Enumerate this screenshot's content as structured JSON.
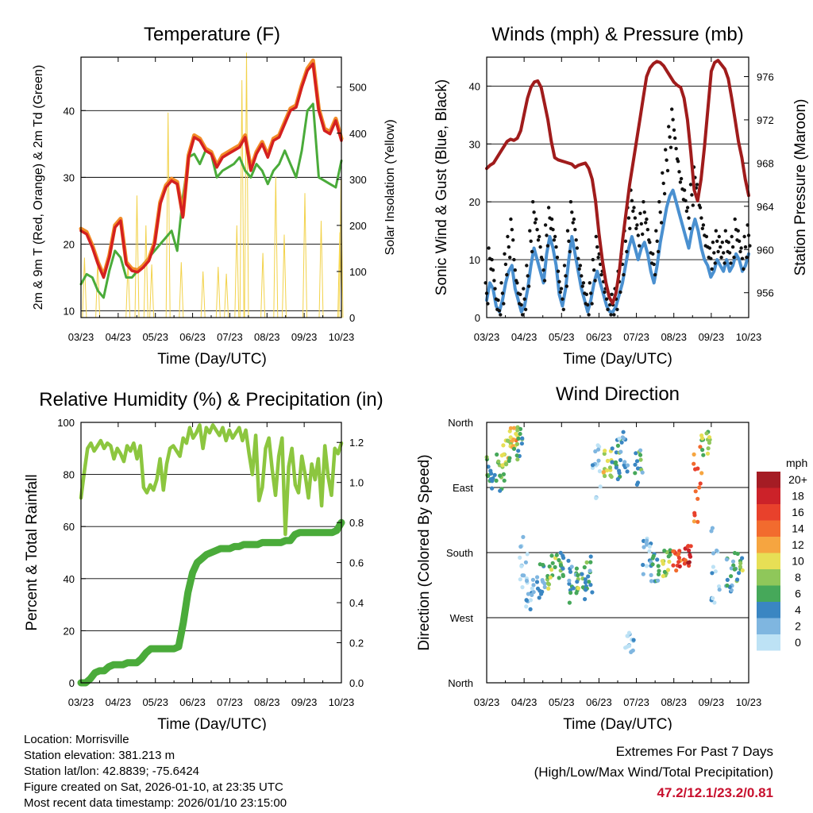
{
  "x_ticks": [
    "03/23",
    "04/23",
    "05/23",
    "06/23",
    "07/23",
    "08/23",
    "09/23",
    "10/23"
  ],
  "x_label": "Time (Day/UTC)",
  "chart_data": [
    {
      "type": "line",
      "title": "Temperature (F)",
      "ylabel": "2m & 9m T (Red, Orange) & 2m Td (Green)",
      "y2label": "Solar Insolation (Yellow)",
      "ylim": [
        9,
        48
      ],
      "y2lim": [
        0,
        565
      ],
      "yticks": [
        10,
        20,
        30,
        40
      ],
      "y2ticks": [
        0,
        100,
        200,
        300,
        400,
        500
      ],
      "series": [
        {
          "name": "2m T",
          "color": "#d42020",
          "values": [
            22,
            21.5,
            19.5,
            17,
            15,
            18,
            22.5,
            23.5,
            17,
            16,
            15.8,
            16.5,
            17.5,
            20,
            26,
            28.5,
            29.5,
            29,
            24,
            33,
            36,
            35.5,
            34,
            33.5,
            31.5,
            33,
            33.5,
            34,
            34.5,
            36,
            31,
            33.5,
            35,
            33,
            35.5,
            36,
            38,
            40,
            40.5,
            43.5,
            46,
            47,
            40,
            37,
            36.5,
            38.5,
            35.5
          ]
        },
        {
          "name": "9m T",
          "color": "#f28c28",
          "values": [
            22.3,
            21.8,
            19.8,
            17.3,
            15.3,
            18.3,
            22.8,
            23.8,
            17.3,
            16.3,
            16.1,
            16.8,
            17.8,
            20.3,
            26.3,
            28.8,
            29.8,
            29.3,
            24.3,
            33.3,
            36.3,
            35.8,
            34.3,
            33.8,
            31.8,
            33.3,
            33.8,
            34.3,
            34.8,
            36.3,
            31.3,
            33.8,
            35.3,
            33.3,
            35.8,
            36.3,
            38.3,
            40.3,
            40.8,
            43.8,
            46.3,
            47.5,
            40.3,
            37.3,
            36.8,
            38.8,
            35.8
          ]
        },
        {
          "name": "2m Td",
          "color": "#4aab3a",
          "values": [
            14,
            15.5,
            15,
            13,
            12,
            16,
            19,
            18,
            15,
            15,
            16,
            17,
            18,
            19,
            20,
            21,
            22,
            19,
            27,
            33,
            33.5,
            32,
            34,
            33.5,
            30,
            31,
            31.5,
            32,
            33,
            31,
            30,
            32,
            31,
            29,
            31,
            32,
            34,
            32,
            30,
            34,
            40,
            41,
            30,
            29.5,
            29,
            28.5,
            32.5
          ]
        },
        {
          "name": "Solar Insolation",
          "color": "#f2d24a",
          "peaks": [
            [
              "03/24",
              0.9,
              130
            ],
            [
              "04/04",
              4.3,
              125
            ],
            [
              "05/03",
              12.1,
              120
            ],
            [
              "05/10",
              14.4,
              265
            ],
            [
              "05/16",
              16.7,
              200
            ],
            [
              "05/21",
              18.2,
              115
            ],
            [
              "06/04",
              22.4,
              445
            ],
            [
              "06/15",
              25.8,
              120
            ],
            [
              "07/02",
              31.4,
              100
            ],
            [
              "07/14",
              35.3,
              110
            ],
            [
              "07/21",
              37.4,
              95
            ],
            [
              "07/29",
              40.1,
              200
            ],
            [
              "08/02",
              41.4,
              515
            ],
            [
              "08/06",
              42.6,
              575
            ],
            [
              "08/19",
              46.8,
              140
            ],
            [
              "08/29",
              50.1,
              305
            ],
            [
              "09/06",
              52.3,
              180
            ],
            [
              "09/22",
              57.6,
              270
            ],
            [
              "10/05",
              61.8,
              210
            ],
            [
              "10/20",
              66.6,
              185
            ],
            [
              "10/21",
              66.9,
              300
            ]
          ]
        }
      ]
    },
    {
      "type": "line",
      "title": "Winds (mph) & Pressure (mb)",
      "ylabel": "Sonic Wind & Gust (Blue, Black)",
      "y2label": "Station Pressure (Maroon)",
      "ylim": [
        0,
        45
      ],
      "y2lim": [
        953.7,
        977.8
      ],
      "yticks": [
        0,
        10,
        20,
        30,
        40
      ],
      "y2ticks": [
        956,
        960,
        964,
        968,
        972,
        976
      ],
      "series": [
        {
          "name": "Sonic Wind",
          "color": "#4a90d0",
          "values": [
            3,
            6,
            5,
            2,
            1,
            3,
            6,
            8,
            9,
            5,
            3,
            1,
            2,
            5,
            9,
            12,
            10,
            8,
            6,
            11,
            14,
            12,
            9,
            4,
            2,
            5,
            10,
            14,
            11,
            8,
            5,
            3,
            1,
            3,
            6,
            8,
            6,
            4,
            2,
            1,
            1,
            2,
            4,
            6,
            9,
            12,
            14,
            12,
            10,
            12,
            13,
            11,
            8,
            6,
            9,
            13,
            16,
            19,
            21,
            22,
            20,
            18,
            16,
            14,
            12,
            15,
            17,
            15,
            12,
            10,
            9,
            7,
            8,
            10,
            9,
            8,
            10,
            8,
            9,
            11,
            10,
            8,
            9,
            11
          ]
        },
        {
          "name": "Gust",
          "color": "#111111",
          "values": [
            6,
            12,
            10,
            5,
            3,
            6,
            11,
            14,
            17,
            10,
            6,
            4,
            5,
            9,
            15,
            20,
            17,
            14,
            10,
            16,
            19,
            17,
            14,
            8,
            5,
            9,
            15,
            20,
            17,
            12,
            9,
            6,
            4,
            6,
            10,
            14,
            11,
            8,
            5,
            4,
            4,
            5,
            8,
            11,
            15,
            19,
            22,
            19,
            16,
            18,
            20,
            17,
            13,
            11,
            15,
            20,
            25,
            29,
            33,
            36,
            31,
            27,
            24,
            22,
            19,
            23,
            26,
            23,
            19,
            16,
            14,
            12,
            13,
            15,
            14,
            13,
            15,
            13,
            14,
            17,
            15,
            12,
            14,
            16
          ]
        },
        {
          "name": "Station Pressure",
          "color": "#a01c1c",
          "values": [
            967.5,
            967.8,
            968,
            968.5,
            969,
            969.5,
            970,
            970.2,
            970.1,
            970.3,
            971,
            972.5,
            974,
            975,
            975.5,
            975.6,
            975,
            973.5,
            972,
            970,
            968.5,
            968.3,
            968.2,
            968.1,
            968,
            967.9,
            967.6,
            967.8,
            967.9,
            968,
            967.5,
            966.5,
            964.5,
            961.5,
            959,
            957,
            955.6,
            955,
            956,
            958,
            961,
            963.5,
            966,
            968,
            970,
            972,
            974,
            976,
            976.8,
            977.2,
            977.4,
            977.3,
            977,
            976.5,
            976,
            975.5,
            975.2,
            975,
            974,
            972,
            969,
            965.5,
            964.5,
            966.5,
            969.5,
            973,
            976.5,
            977.3,
            977.5,
            977.1,
            976.7,
            975.8,
            974,
            972,
            970,
            968.5,
            966.5,
            965
          ]
        }
      ]
    },
    {
      "type": "line",
      "title": "Relative Humidity (%) & Precipitation (in)",
      "ylabel": "Percent & Total Rainfall",
      "ylim": [
        0,
        100
      ],
      "y2lim": [
        0,
        1.3
      ],
      "yticks": [
        0,
        20,
        40,
        60,
        80,
        100
      ],
      "y2ticks": [
        "0.0",
        "0.2",
        "0.4",
        "0.6",
        "0.8",
        "1.0",
        "1.2"
      ],
      "series": [
        {
          "name": "Relative Humidity",
          "color": "#8cc63f",
          "values": [
            71,
            81,
            90,
            92,
            89,
            91,
            93,
            90,
            92,
            91,
            86,
            90,
            88,
            85,
            91,
            89,
            92,
            86,
            91,
            75,
            73,
            76,
            74,
            78,
            86,
            74,
            84,
            90,
            91,
            89,
            87,
            94,
            92,
            98,
            94,
            96,
            99,
            90,
            98,
            96,
            99,
            97,
            95,
            98,
            93,
            97,
            94,
            96,
            98,
            93,
            97,
            88,
            80,
            95,
            70,
            75,
            90,
            94,
            82,
            72,
            87,
            94,
            57,
            83,
            90,
            76,
            73,
            87,
            80,
            71,
            84,
            78,
            86,
            68,
            91,
            79,
            72,
            90,
            88,
            92
          ]
        },
        {
          "name": "Total Precipitation",
          "color": "#4aab3a",
          "values": [
            0,
            0,
            0.02,
            0.05,
            0.06,
            0.06,
            0.08,
            0.09,
            0.09,
            0.09,
            0.1,
            0.1,
            0.1,
            0.12,
            0.15,
            0.17,
            0.17,
            0.17,
            0.17,
            0.17,
            0.17,
            0.18,
            0.3,
            0.45,
            0.55,
            0.6,
            0.62,
            0.64,
            0.65,
            0.66,
            0.67,
            0.67,
            0.67,
            0.68,
            0.68,
            0.69,
            0.69,
            0.69,
            0.69,
            0.7,
            0.7,
            0.7,
            0.7,
            0.7,
            0.71,
            0.71,
            0.74,
            0.75,
            0.75,
            0.75,
            0.75,
            0.75,
            0.75,
            0.75,
            0.75,
            0.76,
            0.8
          ]
        }
      ]
    },
    {
      "type": "scatter",
      "title": "Wind Direction",
      "ylabel": "Direction (Colored By Speed)",
      "yticks": [
        "North",
        "West",
        "South",
        "East",
        "North"
      ],
      "colorbar_unit": "mph",
      "colorbar": [
        {
          "label": "20+",
          "color": "#a51c24"
        },
        {
          "label": "18",
          "color": "#cc2229"
        },
        {
          "label": "16",
          "color": "#e8412c"
        },
        {
          "label": "14",
          "color": "#f26b2e"
        },
        {
          "label": "12",
          "color": "#f6a540"
        },
        {
          "label": "10",
          "color": "#e7df55"
        },
        {
          "label": "8",
          "color": "#8fc75a"
        },
        {
          "label": "6",
          "color": "#46a85a"
        },
        {
          "label": "4",
          "color": "#3a86c2"
        },
        {
          "label": "2",
          "color": "#7fb6e0"
        },
        {
          "label": "0",
          "color": "#bde2f5"
        }
      ],
      "clusters": [
        {
          "t": 1,
          "dir": 290,
          "spread": 25,
          "speed": 6
        },
        {
          "t": 3.5,
          "dir": 290,
          "spread": 30,
          "speed": 8
        },
        {
          "t": 5,
          "dir": 320,
          "spread": 20,
          "speed": 10
        },
        {
          "t": 7,
          "dir": 340,
          "spread": 15,
          "speed": 12
        },
        {
          "t": 8,
          "dir": 330,
          "spread": 25,
          "speed": 7
        },
        {
          "t": 9.5,
          "dir": 170,
          "spread": 40,
          "speed": 2
        },
        {
          "t": 11,
          "dir": 120,
          "spread": 25,
          "speed": 3
        },
        {
          "t": 14,
          "dir": 140,
          "spread": 25,
          "speed": 5
        },
        {
          "t": 16.5,
          "dir": 155,
          "spread": 25,
          "speed": 9
        },
        {
          "t": 19,
          "dir": 165,
          "spread": 20,
          "speed": 7
        },
        {
          "t": 22,
          "dir": 140,
          "spread": 30,
          "speed": 5
        },
        {
          "t": 24,
          "dir": 140,
          "spread": 25,
          "speed": 8
        },
        {
          "t": 26,
          "dir": 150,
          "spread": 25,
          "speed": 6
        },
        {
          "t": 28,
          "dir": 290,
          "spread": 40,
          "speed": 2
        },
        {
          "t": 31,
          "dir": 305,
          "spread": 25,
          "speed": 10
        },
        {
          "t": 33,
          "dir": 310,
          "spread": 30,
          "speed": 6
        },
        {
          "t": 35,
          "dir": 320,
          "spread": 30,
          "speed": 4
        },
        {
          "t": 36.5,
          "dir": 60,
          "spread": 20,
          "speed": 2
        },
        {
          "t": 39,
          "dir": 295,
          "spread": 30,
          "speed": 6
        },
        {
          "t": 41,
          "dir": 175,
          "spread": 25,
          "speed": 3
        },
        {
          "t": 43,
          "dir": 160,
          "spread": 20,
          "speed": 5
        },
        {
          "t": 46,
          "dir": 165,
          "spread": 20,
          "speed": 9
        },
        {
          "t": 48.5,
          "dir": 170,
          "spread": 15,
          "speed": 16
        },
        {
          "t": 51.5,
          "dir": 175,
          "spread": 15,
          "speed": 18
        },
        {
          "t": 54,
          "dir": 270,
          "spread": 60,
          "speed": 15
        },
        {
          "t": 56,
          "dir": 330,
          "spread": 20,
          "speed": 9
        },
        {
          "t": 58.5,
          "dir": 170,
          "spread": 60,
          "speed": 3
        },
        {
          "t": 62,
          "dir": 150,
          "spread": 25,
          "speed": 5
        },
        {
          "t": 64.5,
          "dir": 160,
          "spread": 20,
          "speed": 8
        }
      ]
    }
  ],
  "info": {
    "location": "Location: Morrisville",
    "elevation": "Station elevation: 381.213 m",
    "latlon": "Station lat/lon: 42.8839; -75.6424",
    "created": "Figure created on Sat, 2026-01-10, at 23:35 UTC",
    "recent": "Most recent data timestamp: 2026/01/10 23:15:00"
  },
  "extremes": {
    "title": "Extremes For Past 7 Days",
    "subtitle": "(High/Low/Max Wind/Total Precipitation)",
    "values": "47.2/12.1/23.2/0.81"
  }
}
